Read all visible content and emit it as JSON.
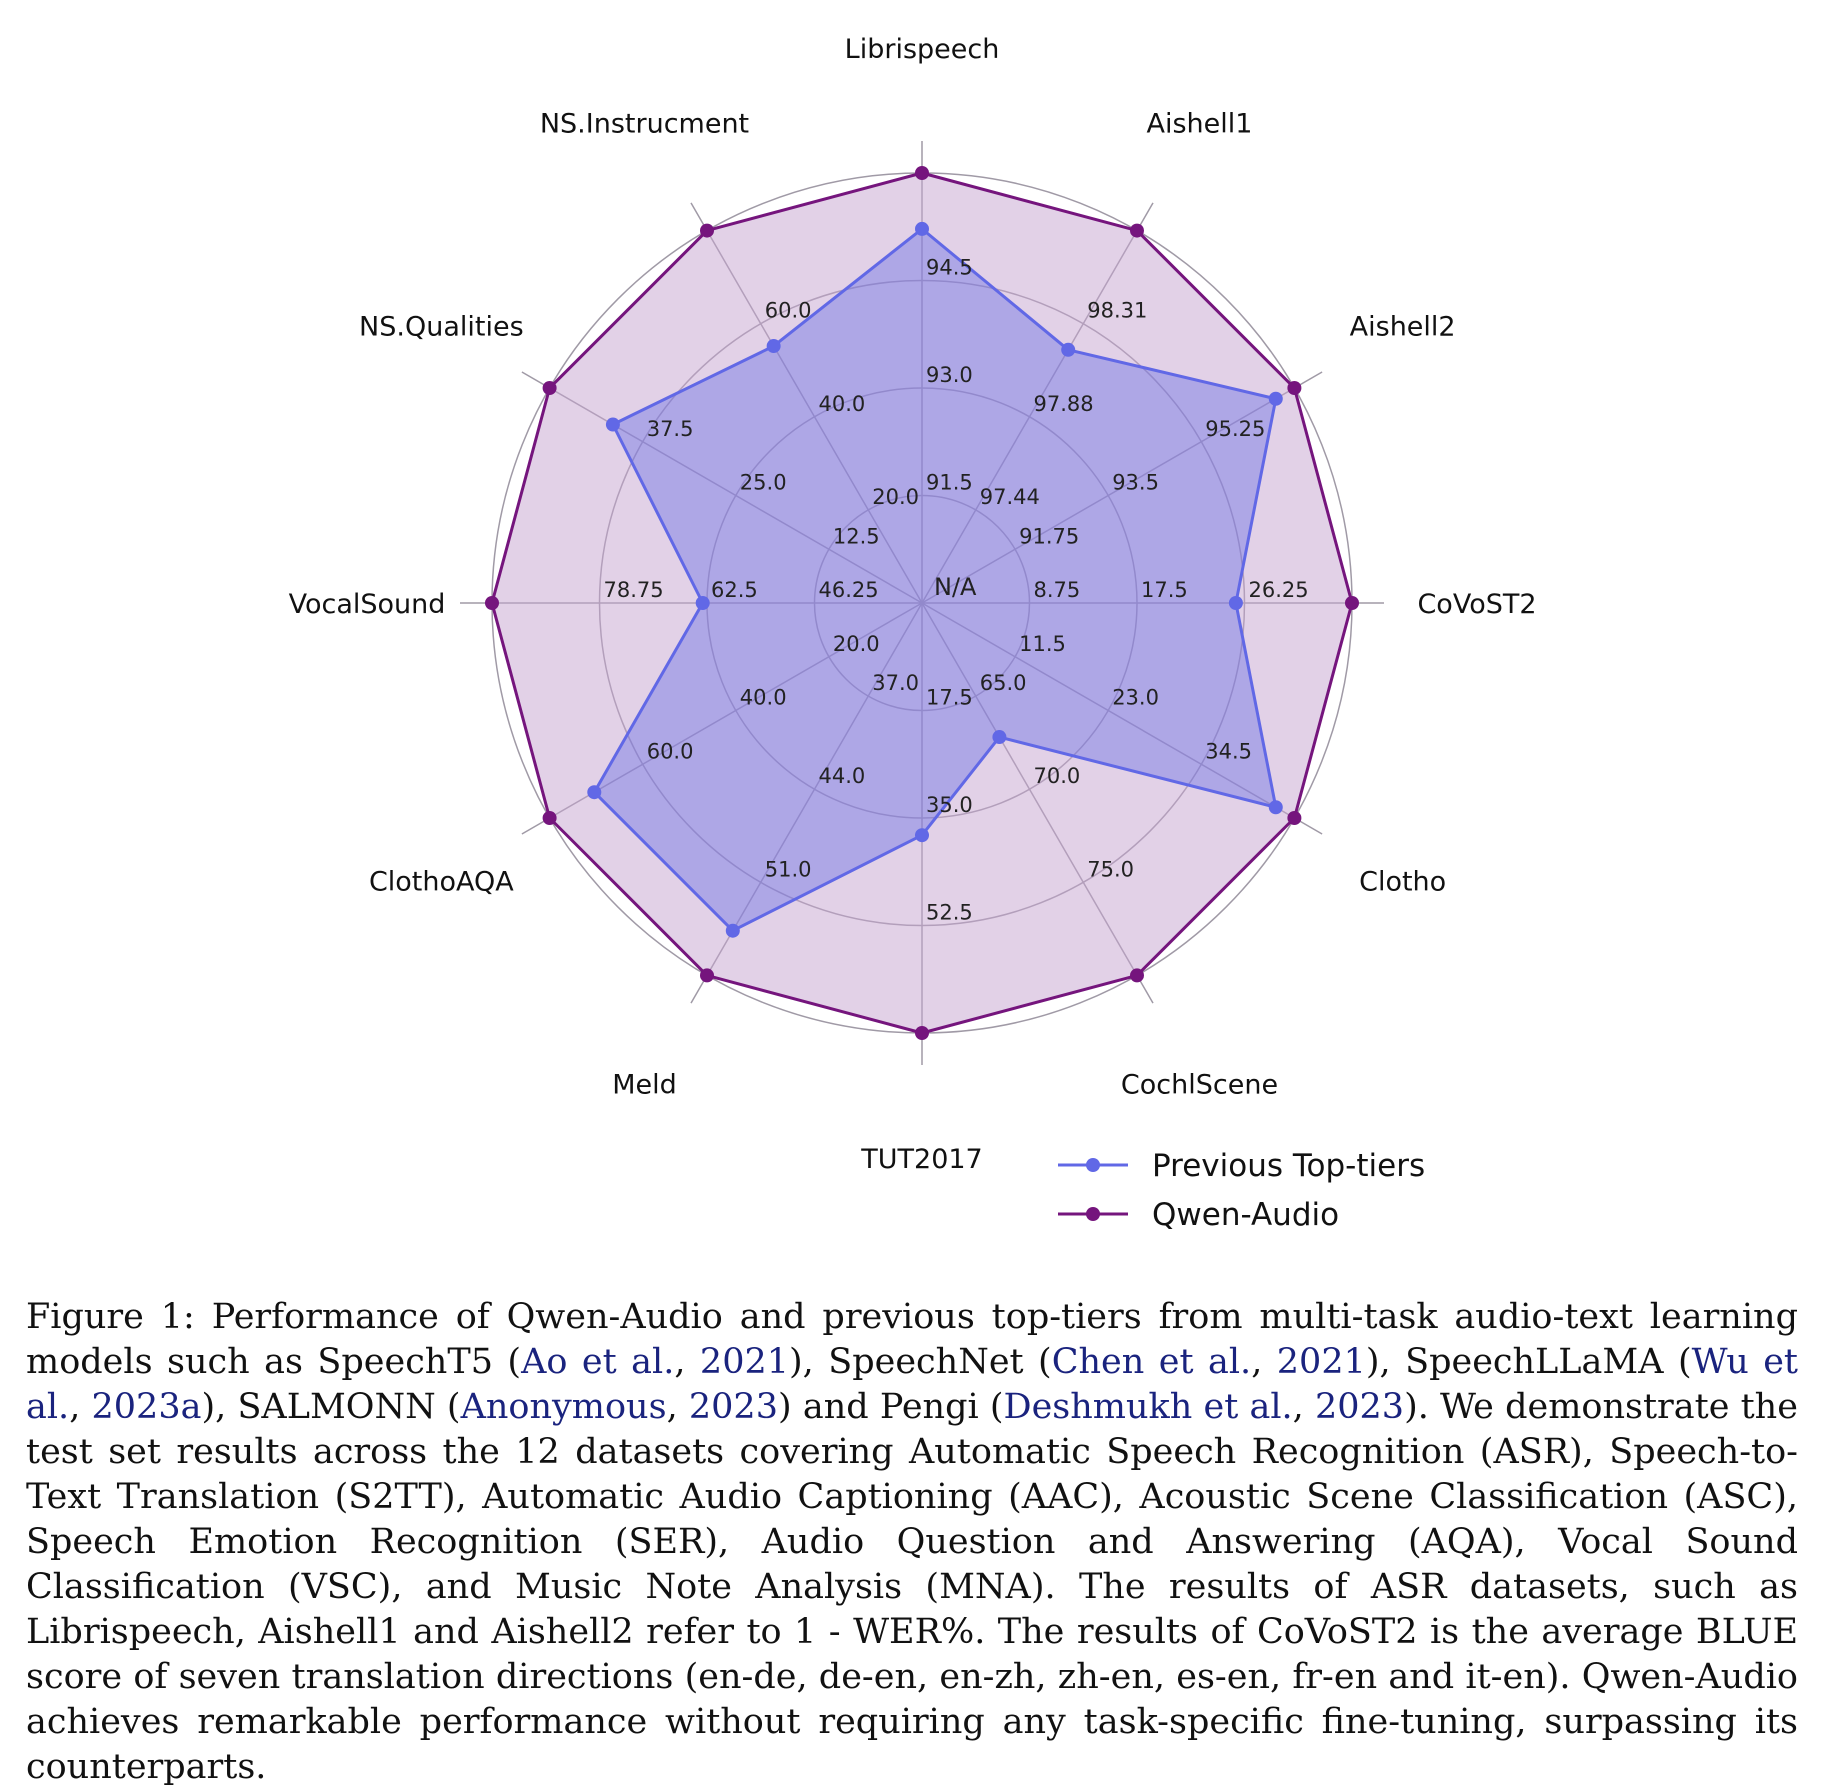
{
  "chart_data": {
    "type": "radar",
    "axes": [
      "Librispeech",
      "Aishell1",
      "Aishell2",
      "CoVoST2",
      "Clotho",
      "CochlScene",
      "TUT2017",
      "Meld",
      "ClothoAQA",
      "VocalSound",
      "NS.Qualities",
      "NS.Instrucment"
    ],
    "rings": 4,
    "center_label": "N/A",
    "tick_labels": [
      [
        "91.5",
        "93.0",
        "94.5"
      ],
      [
        "97.44",
        "97.88",
        "98.31"
      ],
      [
        "91.75",
        "93.5",
        "95.25"
      ],
      [
        "8.75",
        "17.5",
        "26.25"
      ],
      [
        "11.5",
        "23.0",
        "34.5"
      ],
      [
        "65.0",
        "70.0",
        "75.0"
      ],
      [
        "17.5",
        "35.0",
        "52.5"
      ],
      [
        "37.0",
        "44.0",
        "51.0"
      ],
      [
        "20.0",
        "40.0",
        "60.0"
      ],
      [
        "46.25",
        "62.5",
        "78.75"
      ],
      [
        "12.5",
        "25.0",
        "37.5"
      ],
      [
        "20.0",
        "40.0",
        "60.0"
      ]
    ],
    "series": [
      {
        "name": "Previous Top-tiers",
        "color": "#6168e6",
        "values_normalized": [
          0.87,
          0.68,
          0.95,
          0.73,
          0.95,
          0.36,
          0.54,
          0.88,
          0.88,
          0.51,
          0.83,
          0.69
        ]
      },
      {
        "name": "Qwen-Audio",
        "color": "#75157d",
        "fill": "#c6a4cf",
        "values_normalized": [
          1.0,
          1.0,
          1.0,
          1.0,
          1.0,
          1.0,
          1.0,
          1.0,
          1.0,
          1.0,
          1.0,
          1.0
        ]
      }
    ]
  },
  "caption": {
    "prefix": "Figure 1:",
    "t1": "Performance of Qwen-Audio and previous top-tiers from multi-task audio-text learning models such as SpeechT5 (",
    "c1": "Ao et al.",
    "y1": "2021",
    "t2": "), SpeechNet (",
    "c2": "Chen et al.",
    "y2": "2021",
    "t3": "), SpeechLLaMA (",
    "c3": "Wu et al.",
    "y3": "2023a",
    "t4": "), SALMONN (",
    "c4": "Anonymous",
    "y4": "2023",
    "t5": ") and Pengi (",
    "c5": "Deshmukh et al.",
    "y5": "2023",
    "t6": "). We demonstrate the test set results across the 12 datasets covering Automatic Speech Recognition (ASR), Speech-to-Text Translation (S2TT), Automatic Audio Captioning (AAC), Acoustic Scene Classification (ASC), Speech Emotion Recognition (SER), Audio Question and Answering (AQA), Vocal Sound Classification (VSC), and Music Note Analysis (MNA). The results of ASR datasets, such as Librispeech, Aishell1 and Aishell2 refer to 1 - WER%. The results of CoVoST2 is the average BLUE score of seven translation directions (en-de, de-en, en-zh, zh-en, es-en, fr-en and it-en). Qwen-Audio achieves remarkable performance without requiring any task-specific fine-tuning, surpassing its counterparts."
  }
}
